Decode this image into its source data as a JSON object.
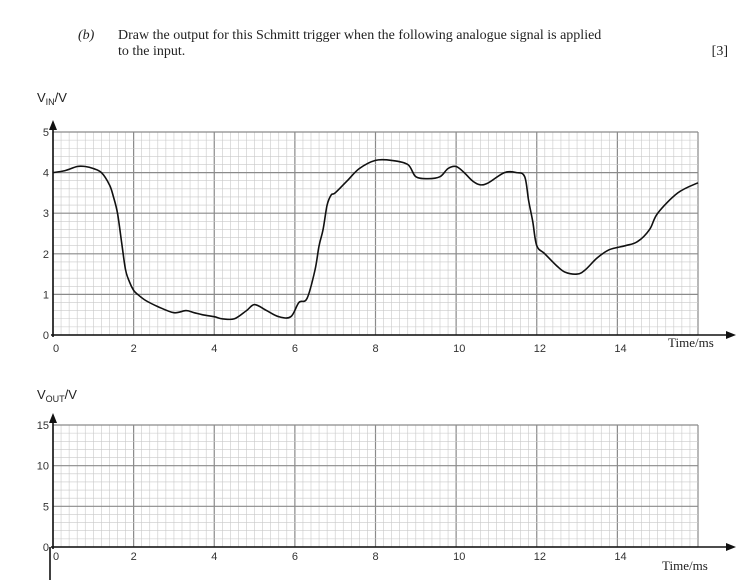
{
  "question": {
    "number": "(b)",
    "line1": "Draw the output for this Schmitt trigger when the following analogue signal is applied",
    "line2": "to the input.",
    "marks": "[3]"
  },
  "chart_data": [
    {
      "type": "line",
      "title": "",
      "ylabel_main": "V",
      "ylabel_sub": "IN",
      "ylabel_unit": "/V",
      "xlabel": "Time/ms",
      "xlim": [
        0,
        16
      ],
      "ylim": [
        0,
        5
      ],
      "x_tick_labels": [
        "0",
        "2",
        "4",
        "6",
        "8",
        "10",
        "12",
        "14"
      ],
      "y_tick_labels": [
        "0",
        "1",
        "2",
        "3",
        "4",
        "5"
      ],
      "grid": true,
      "series": [
        {
          "x": [
            0,
            0.3,
            0.6,
            0.8,
            1.0,
            1.2,
            1.4,
            1.5,
            1.6,
            1.7,
            1.8,
            1.9,
            2.0,
            2.1,
            2.3,
            2.6,
            3.0,
            3.3,
            3.5,
            3.7,
            4.0,
            4.2,
            4.5,
            4.8,
            5.0,
            5.3,
            5.6,
            5.9,
            6.1,
            6.3,
            6.5,
            6.6,
            6.7,
            6.8,
            6.9,
            7.0,
            7.3,
            7.6,
            8.0,
            8.4,
            8.8,
            9.0,
            9.3,
            9.6,
            9.8,
            10.0,
            10.2,
            10.4,
            10.6,
            10.8,
            11.2,
            11.5,
            11.7,
            11.8,
            11.9,
            12.0,
            12.2,
            12.5,
            12.7,
            13.0,
            13.2,
            13.5,
            13.8,
            14.2,
            14.5,
            14.8,
            15.0,
            15.5,
            16.0
          ],
          "y": [
            4.0,
            4.05,
            4.15,
            4.15,
            4.1,
            4.0,
            3.7,
            3.4,
            3.0,
            2.3,
            1.6,
            1.3,
            1.1,
            1.0,
            0.85,
            0.7,
            0.55,
            0.6,
            0.55,
            0.5,
            0.45,
            0.4,
            0.4,
            0.6,
            0.75,
            0.6,
            0.45,
            0.45,
            0.8,
            0.9,
            1.6,
            2.2,
            2.6,
            3.2,
            3.45,
            3.5,
            3.8,
            4.1,
            4.3,
            4.3,
            4.2,
            3.9,
            3.85,
            3.9,
            4.1,
            4.15,
            4.0,
            3.8,
            3.7,
            3.75,
            4.0,
            4.0,
            3.9,
            3.3,
            2.8,
            2.2,
            2.0,
            1.7,
            1.55,
            1.5,
            1.6,
            1.9,
            2.1,
            2.2,
            2.3,
            2.6,
            3.0,
            3.5,
            3.75
          ]
        }
      ]
    },
    {
      "type": "line",
      "title": "",
      "ylabel_main": "V",
      "ylabel_sub": "OUT",
      "ylabel_unit": "/V",
      "xlabel": "Time/ms",
      "xlim": [
        0,
        16
      ],
      "ylim": [
        0,
        15
      ],
      "x_tick_labels": [
        "0",
        "2",
        "4",
        "6",
        "8",
        "10",
        "12",
        "14"
      ],
      "y_tick_labels": [
        "0",
        "5",
        "10",
        "15"
      ],
      "grid": true,
      "series": []
    }
  ]
}
